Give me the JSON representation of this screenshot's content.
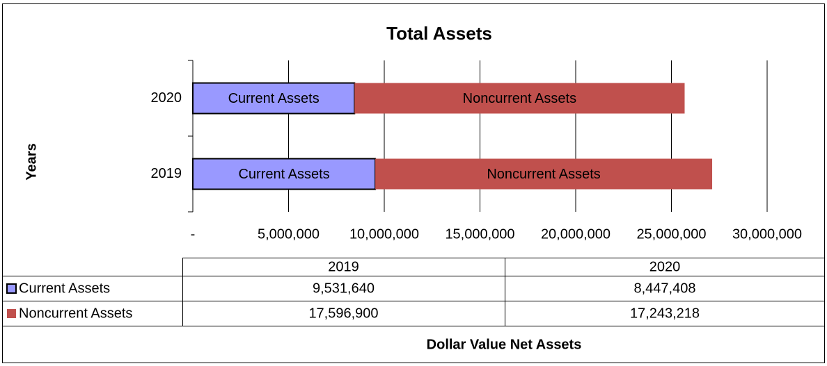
{
  "chart_data": {
    "type": "stacked_bar_horizontal",
    "title": "Total Assets",
    "y_label": "Years",
    "x_label": "Dollar Value Net Assets",
    "categories": [
      "2019",
      "2020"
    ],
    "series": [
      {
        "name": "Current Assets",
        "color": "#9999ff",
        "values": [
          9531640,
          8447408
        ],
        "value_labels": [
          "9,531,640",
          "8,447,408"
        ]
      },
      {
        "name": "Noncurrent Assets",
        "color": "#c0504d",
        "values": [
          17596900,
          17243218
        ],
        "value_labels": [
          "17,596,900",
          "17,243,218"
        ]
      }
    ],
    "xlim": [
      0,
      30000000
    ],
    "xticks": [
      {
        "value": 0,
        "label": "-"
      },
      {
        "value": 5000000,
        "label": "5,000,000"
      },
      {
        "value": 10000000,
        "label": "10,000,000"
      },
      {
        "value": 15000000,
        "label": "15,000,000"
      },
      {
        "value": 20000000,
        "label": "20,000,000"
      },
      {
        "value": 25000000,
        "label": "25,000,000"
      },
      {
        "value": 30000000,
        "label": "30,000,000"
      }
    ],
    "grid": true
  }
}
